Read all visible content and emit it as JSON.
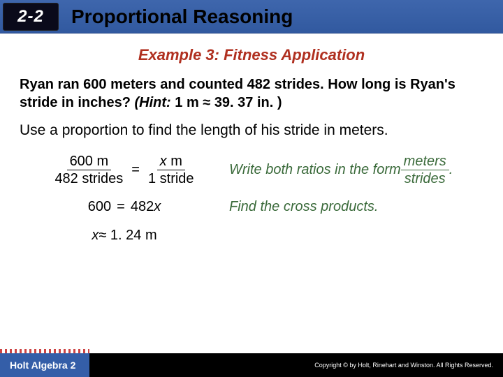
{
  "header": {
    "section_number": "2-2",
    "title": "Proportional Reasoning"
  },
  "example_heading": "Example 3: Fitness Application",
  "problem": {
    "line1": "Ryan ran 600 meters and counted 482 strides. How long is Ryan's stride in inches?",
    "hint_label": "(Hint:",
    "hint_body": " 1 m ≈ 39. 37 in. )"
  },
  "instruction": "Use a proportion to find the length of his stride in meters.",
  "step1": {
    "frac1_num": "600 m",
    "frac1_den": "482 strides",
    "eq": "=",
    "frac2_num_var": "x",
    "frac2_num_unit": " m",
    "frac2_den": "1 stride",
    "explain_pre": "Write both ratios in the form ",
    "explain_frac_num": "meters",
    "explain_frac_den": "strides",
    "explain_post": " ."
  },
  "step2": {
    "lhs": "600",
    "eq": "=",
    "rhs_coef": "482",
    "rhs_var": "x",
    "explain": "Find the cross products."
  },
  "step3": {
    "var": "x",
    "approx": " ≈ 1. 24 m"
  },
  "footer": {
    "book": "Holt Algebra 2",
    "copyright": "Copyright © by Holt, Rinehart and Winston. All Rights Reserved."
  },
  "colors": {
    "header_bg": "#345ea8",
    "badge_bg": "#0a0a1a",
    "heading_red": "#b03020",
    "explain_green": "#3a6a3a",
    "footer_black": "#000000"
  }
}
